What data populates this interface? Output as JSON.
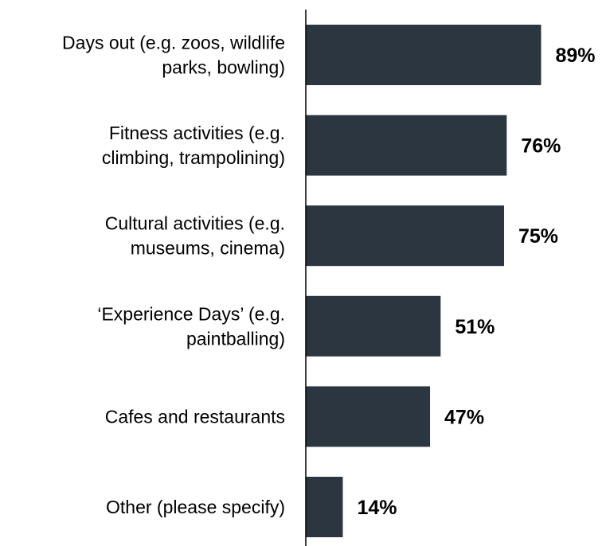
{
  "chart_data": {
    "type": "bar",
    "orientation": "horizontal",
    "categories": [
      [
        "Days out (e.g. zoos, wildlife",
        "parks, bowling)"
      ],
      [
        "Fitness activities (e.g.",
        "climbing, trampolining)"
      ],
      [
        "Cultural activities (e.g.",
        "museums, cinema)"
      ],
      [
        "‘Experience Days’ (e.g.",
        "paintballing)"
      ],
      [
        "Cafes and restaurants"
      ],
      [
        "Other (please specify)"
      ]
    ],
    "values": [
      89,
      76,
      75,
      51,
      47,
      14
    ],
    "value_labels": [
      "89%",
      "76%",
      "75%",
      "51%",
      "47%",
      "14%"
    ],
    "unit": "%",
    "xlim": [
      0,
      100
    ],
    "bar_color": "#2b3640",
    "grid": false,
    "legend": "none"
  }
}
